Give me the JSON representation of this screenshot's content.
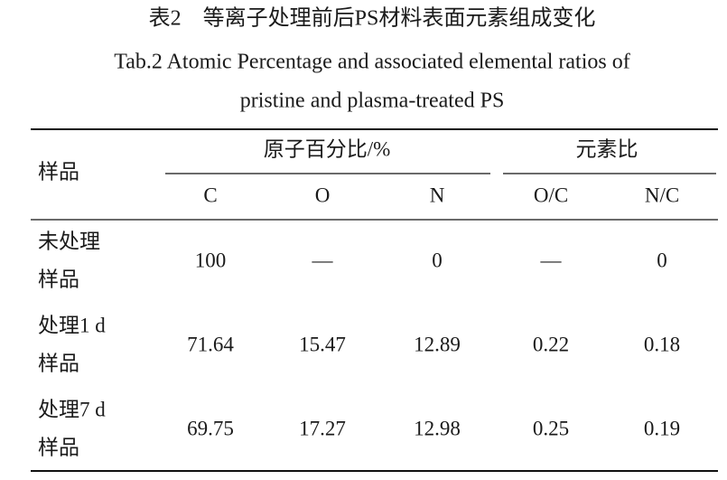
{
  "caption": {
    "title_cn": "表2　等离子处理前后PS材料表面元素组成变化",
    "title_en": [
      "Tab.2 Atomic Percentage and associated elemental ratios of",
      "pristine and plasma-treated PS"
    ]
  },
  "table": {
    "header": {
      "sample": "样品",
      "groups": [
        "原子百分比/%",
        "元素比"
      ],
      "columns": [
        "C",
        "O",
        "N",
        "O/C",
        "N/C"
      ]
    },
    "rows": [
      {
        "sample": [
          "未处理",
          "样品"
        ],
        "cells": [
          100,
          "—",
          0,
          "—",
          0
        ]
      },
      {
        "sample": [
          "处理1 d",
          "样品"
        ],
        "cells": [
          71.64,
          15.47,
          12.89,
          0.22,
          0.18
        ]
      },
      {
        "sample": [
          "处理7 d",
          "样品"
        ],
        "cells": [
          69.75,
          17.27,
          12.98,
          0.25,
          0.19
        ]
      }
    ]
  }
}
